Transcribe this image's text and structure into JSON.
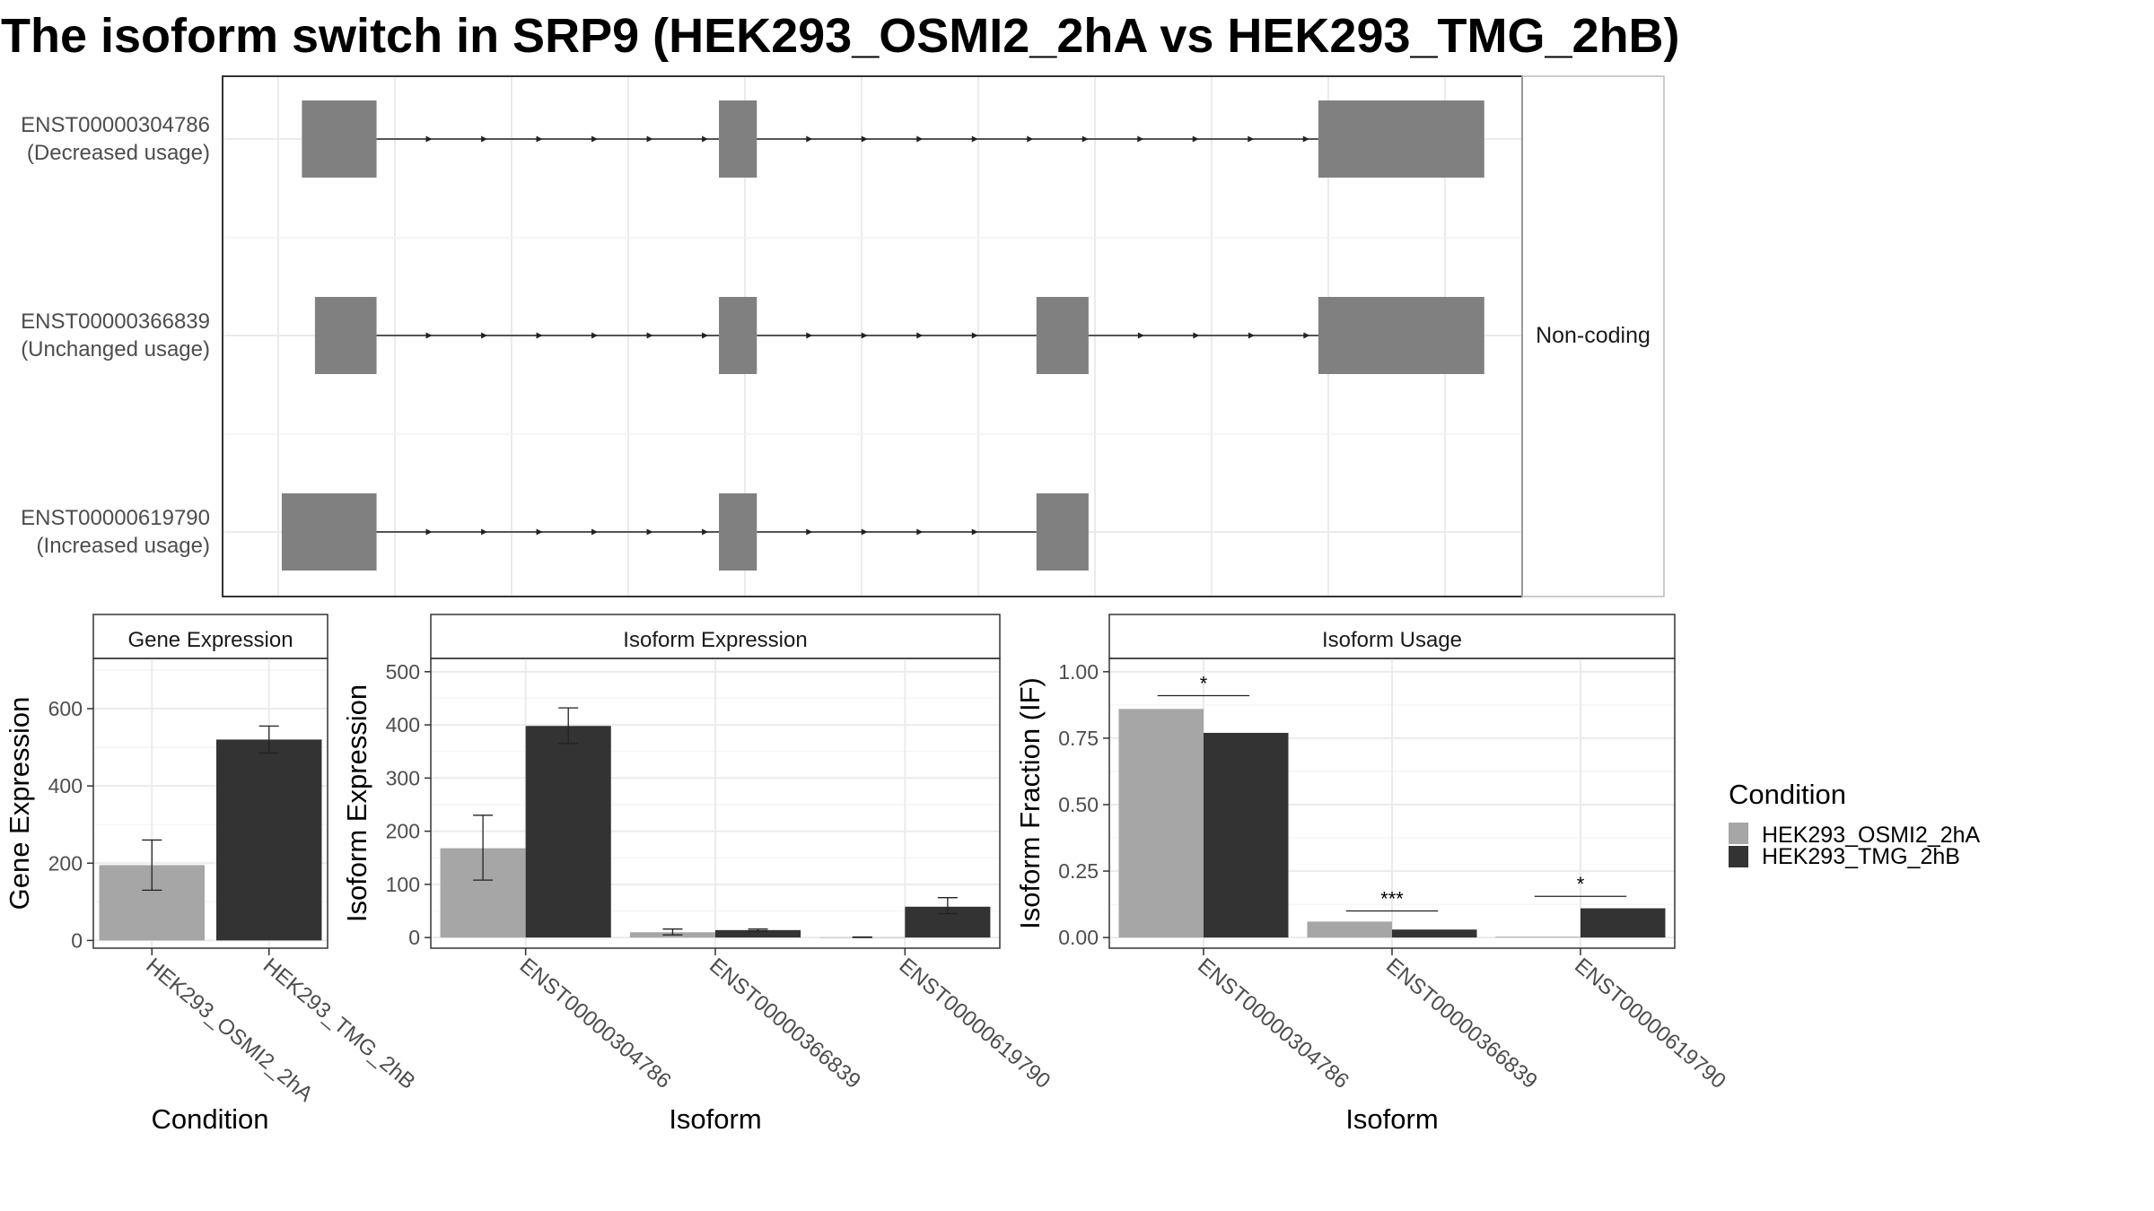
{
  "title": "The isoform switch in SRP9 (HEK293_OSMI2_2hA vs HEK293_TMG_2hB)",
  "structure": {
    "strip_label": "Non-coding",
    "x_range": [
      0,
      1000
    ],
    "transcripts": [
      {
        "id": "ENST00000304786",
        "usage": "(Decreased usage)",
        "exons": [
          [
            20,
            83
          ],
          [
            372,
            404
          ],
          [
            878,
            1018
          ]
        ]
      },
      {
        "id": "ENST00000366839",
        "usage": "(Unchanged usage)",
        "exons": [
          [
            31,
            83
          ],
          [
            372,
            404
          ],
          [
            640,
            684
          ],
          [
            878,
            1018
          ]
        ]
      },
      {
        "id": "ENST00000619790",
        "usage": "(Increased usage)",
        "exons": [
          [
            3,
            83
          ],
          [
            372,
            404
          ],
          [
            640,
            684
          ]
        ]
      }
    ]
  },
  "legend": {
    "title": "Condition",
    "items": [
      {
        "label": "HEK293_OSMI2_2hA",
        "color": "#a6a6a6"
      },
      {
        "label": "HEK293_TMG_2hB",
        "color": "#333333"
      }
    ]
  },
  "chart_data": [
    {
      "type": "bar",
      "title": "Gene Expression",
      "xlabel": "Condition",
      "ylabel": "Gene Expression",
      "categories": [
        "HEK293_OSMI2_2hA",
        "HEK293_TMG_2hB"
      ],
      "values": [
        195,
        520
      ],
      "errors": [
        [
          130,
          260
        ],
        [
          485,
          555
        ]
      ],
      "colors": [
        "#a6a6a6",
        "#333333"
      ],
      "ylim": [
        -20,
        730
      ],
      "yticks": [
        "0",
        "200",
        "400",
        "600"
      ]
    },
    {
      "type": "bar",
      "title": "Isoform Expression",
      "xlabel": "Isoform",
      "ylabel": "Isoform Expression",
      "categories": [
        "ENST00000304786",
        "ENST00000366839",
        "ENST00000619790"
      ],
      "series": [
        {
          "name": "HEK293_OSMI2_2hA",
          "color": "#a6a6a6",
          "values": [
            168,
            10,
            0.5
          ],
          "errors": [
            [
              108,
              230
            ],
            [
              5,
              16
            ],
            [
              0,
              1
            ]
          ]
        },
        {
          "name": "HEK293_TMG_2hB",
          "color": "#333333",
          "values": [
            398,
            14,
            58
          ],
          "errors": [
            [
              365,
              432
            ],
            [
              12,
              16
            ],
            [
              45,
              75
            ]
          ]
        }
      ],
      "ylim": [
        -20,
        525
      ],
      "yticks": [
        "0",
        "100",
        "200",
        "300",
        "400",
        "500"
      ]
    },
    {
      "type": "bar",
      "title": "Isoform Usage",
      "xlabel": "Isoform",
      "ylabel": "Isoform Fraction (IF)",
      "categories": [
        "ENST00000304786",
        "ENST00000366839",
        "ENST00000619790"
      ],
      "series": [
        {
          "name": "HEK293_OSMI2_2hA",
          "color": "#a6a6a6",
          "values": [
            0.86,
            0.06,
            0.003
          ]
        },
        {
          "name": "HEK293_TMG_2hB",
          "color": "#333333",
          "values": [
            0.77,
            0.03,
            0.11
          ]
        }
      ],
      "significance": [
        {
          "label": "*",
          "y": 0.91
        },
        {
          "label": "***",
          "y": 0.1
        },
        {
          "label": "*",
          "y": 0.155
        }
      ],
      "ylim": [
        -0.04,
        1.05
      ],
      "yticks": [
        "0.00",
        "0.25",
        "0.50",
        "0.75",
        "1.00"
      ]
    }
  ]
}
